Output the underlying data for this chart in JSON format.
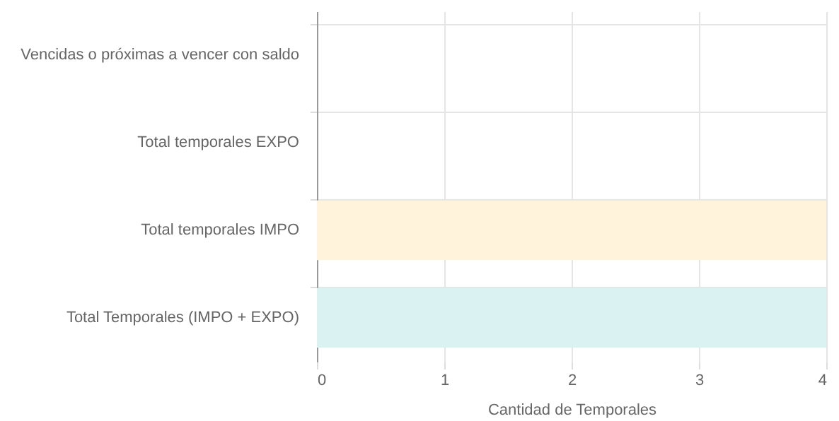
{
  "chart_data": {
    "type": "bar",
    "orientation": "horizontal",
    "xlabel": "Cantidad de Temporales",
    "categories": [
      "Vencidas o próximas a vencer con saldo",
      "Total temporales EXPO",
      "Total temporales IMPO",
      "Total Temporales (IMPO + EXPO)"
    ],
    "values": [
      0,
      0,
      4,
      4
    ],
    "colors": [
      "#dbf2f2",
      "#fff3dc",
      "#fff3dc",
      "#dbf2f2"
    ],
    "xlim": [
      0,
      4
    ],
    "xticks": [
      0,
      1,
      2,
      3,
      4
    ],
    "grid": true
  }
}
